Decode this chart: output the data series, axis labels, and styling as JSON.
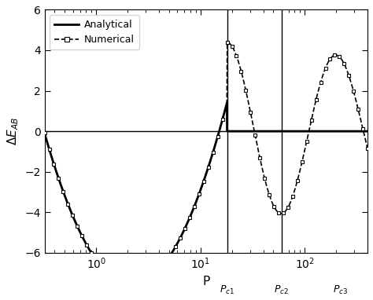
{
  "xlim": [
    0.32,
    400
  ],
  "ylim": [
    -6,
    6
  ],
  "yticks": [
    -6,
    -4,
    -2,
    0,
    2,
    4,
    6
  ],
  "xlabel": "P",
  "ylabel": "$\\Delta E_{AB}$",
  "legend_entries": [
    "Analytical",
    "Numerical"
  ],
  "vline_Pc1": 18.0,
  "vline_Pc2": 60.0,
  "Pc1_label": "$P_{c1}$",
  "Pc2_label": "$P_{c2}$",
  "Pc3_label": "$P_{c3}$",
  "Pc3_x": 220.0,
  "analytical_color": "#000000",
  "numerical_color": "#000000",
  "background_color": "#ffffff",
  "hline_y": 0.0,
  "figsize": [
    4.74,
    3.82
  ],
  "dpi": 100
}
